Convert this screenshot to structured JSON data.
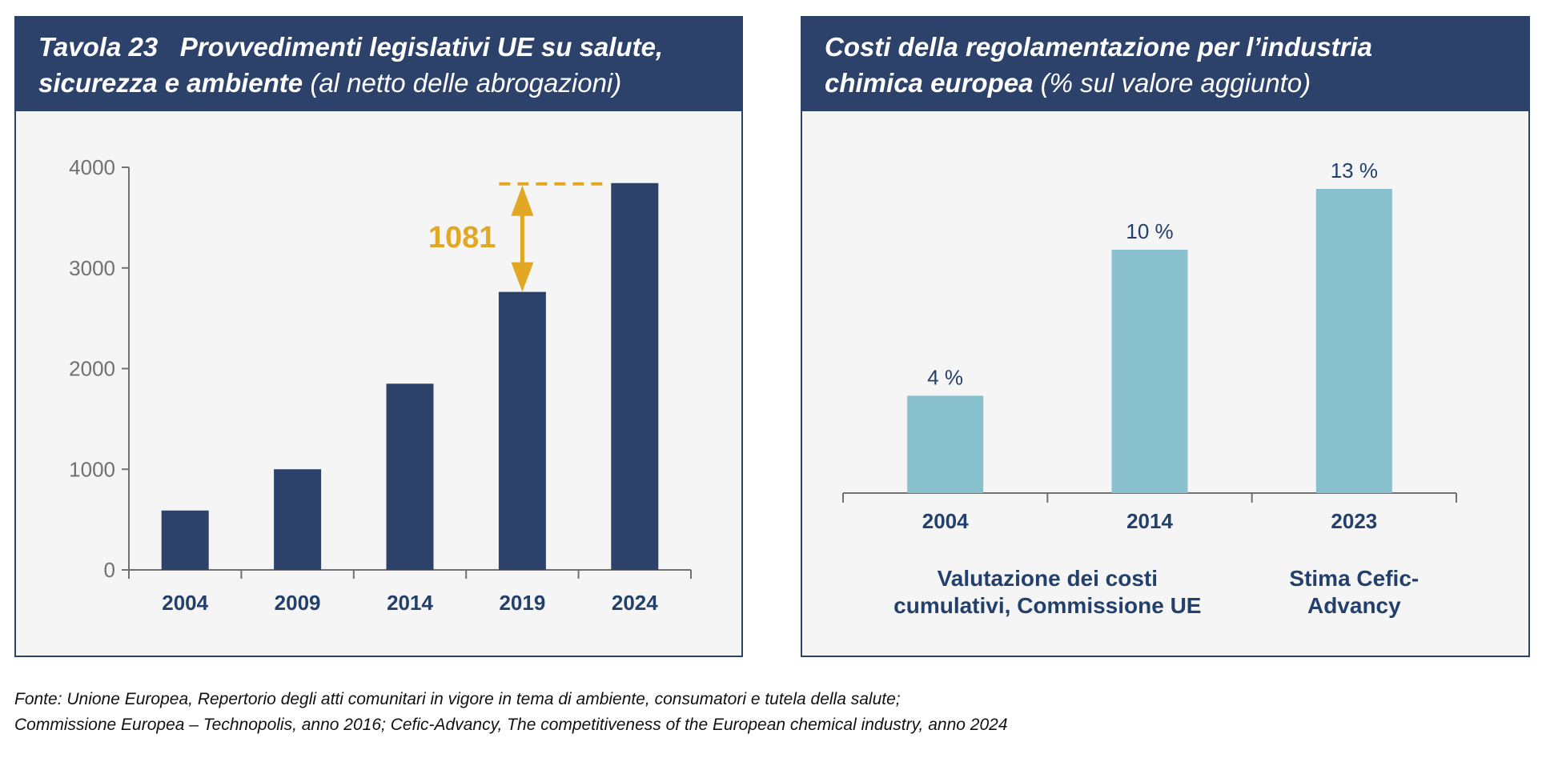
{
  "left_panel": {
    "title_prefix": "Tavola 23",
    "title_bold_line1": "Provvedimenti legislativi UE su salute,",
    "title_bold_line2": "sicurezza e ambiente",
    "title_light": "(al netto delle abrogazioni)"
  },
  "right_panel": {
    "title_bold_line1": "Costi della regolamentazione per l’industria",
    "title_bold_line2": "chimica europea",
    "title_light": "(% sul valore aggiunto)"
  },
  "footnote": {
    "line1": "Fonte: Unione Europea, Repertorio degli atti comunitari in vigore in tema di ambiente, consumatori e tutela della salute;",
    "line2": "Commissione Europea – Technopolis, anno 2016; Cefic-Advancy, The competitiveness of the European chemical industry, anno 2024"
  },
  "colors": {
    "header": "#2c426b",
    "bar_dark": "#2c426b",
    "bar_light": "#88c0ce",
    "annotation": "#e3a823",
    "axis": "#707070",
    "tick_label": "#707070",
    "category_label": "#22406b"
  },
  "chart_data": [
    {
      "type": "bar",
      "title": "Tavola 23 Provvedimenti legislativi UE su salute, sicurezza e ambiente (al netto delle abrogazioni)",
      "xlabel": "",
      "ylabel": "",
      "categories": [
        "2004",
        "2009",
        "2014",
        "2019",
        "2024"
      ],
      "values": [
        590,
        1000,
        1850,
        2762,
        3843
      ],
      "ylim": [
        0,
        4000
      ],
      "yticks": [
        0,
        1000,
        2000,
        3000,
        4000
      ],
      "ytick_labels": [
        "0",
        "1000",
        "2000",
        "3000",
        "4000"
      ],
      "grid": false,
      "annotation": {
        "label": "1081",
        "from_category": "2019",
        "to_category": "2024",
        "type": "difference-arrow"
      }
    },
    {
      "type": "bar",
      "title": "Costi della regolamentazione per l’industria chimica europea (% sul valore aggiunto)",
      "xlabel": "",
      "ylabel": "",
      "categories": [
        "2004",
        "2014",
        "2023"
      ],
      "values": [
        4,
        10,
        12.5
      ],
      "data_labels": [
        "4 %",
        "10 %",
        "13 %"
      ],
      "ylim": [
        0,
        14
      ],
      "grid": false,
      "yaxis_visible": false,
      "group_labels": [
        {
          "text_line1": "Valutazione dei costi",
          "text_line2": "cumulativi, Commissione UE",
          "categories": [
            "2004",
            "2014"
          ]
        },
        {
          "text_line1": "Stima Cefic-",
          "text_line2": "Advancy",
          "categories": [
            "2023"
          ]
        }
      ]
    }
  ]
}
